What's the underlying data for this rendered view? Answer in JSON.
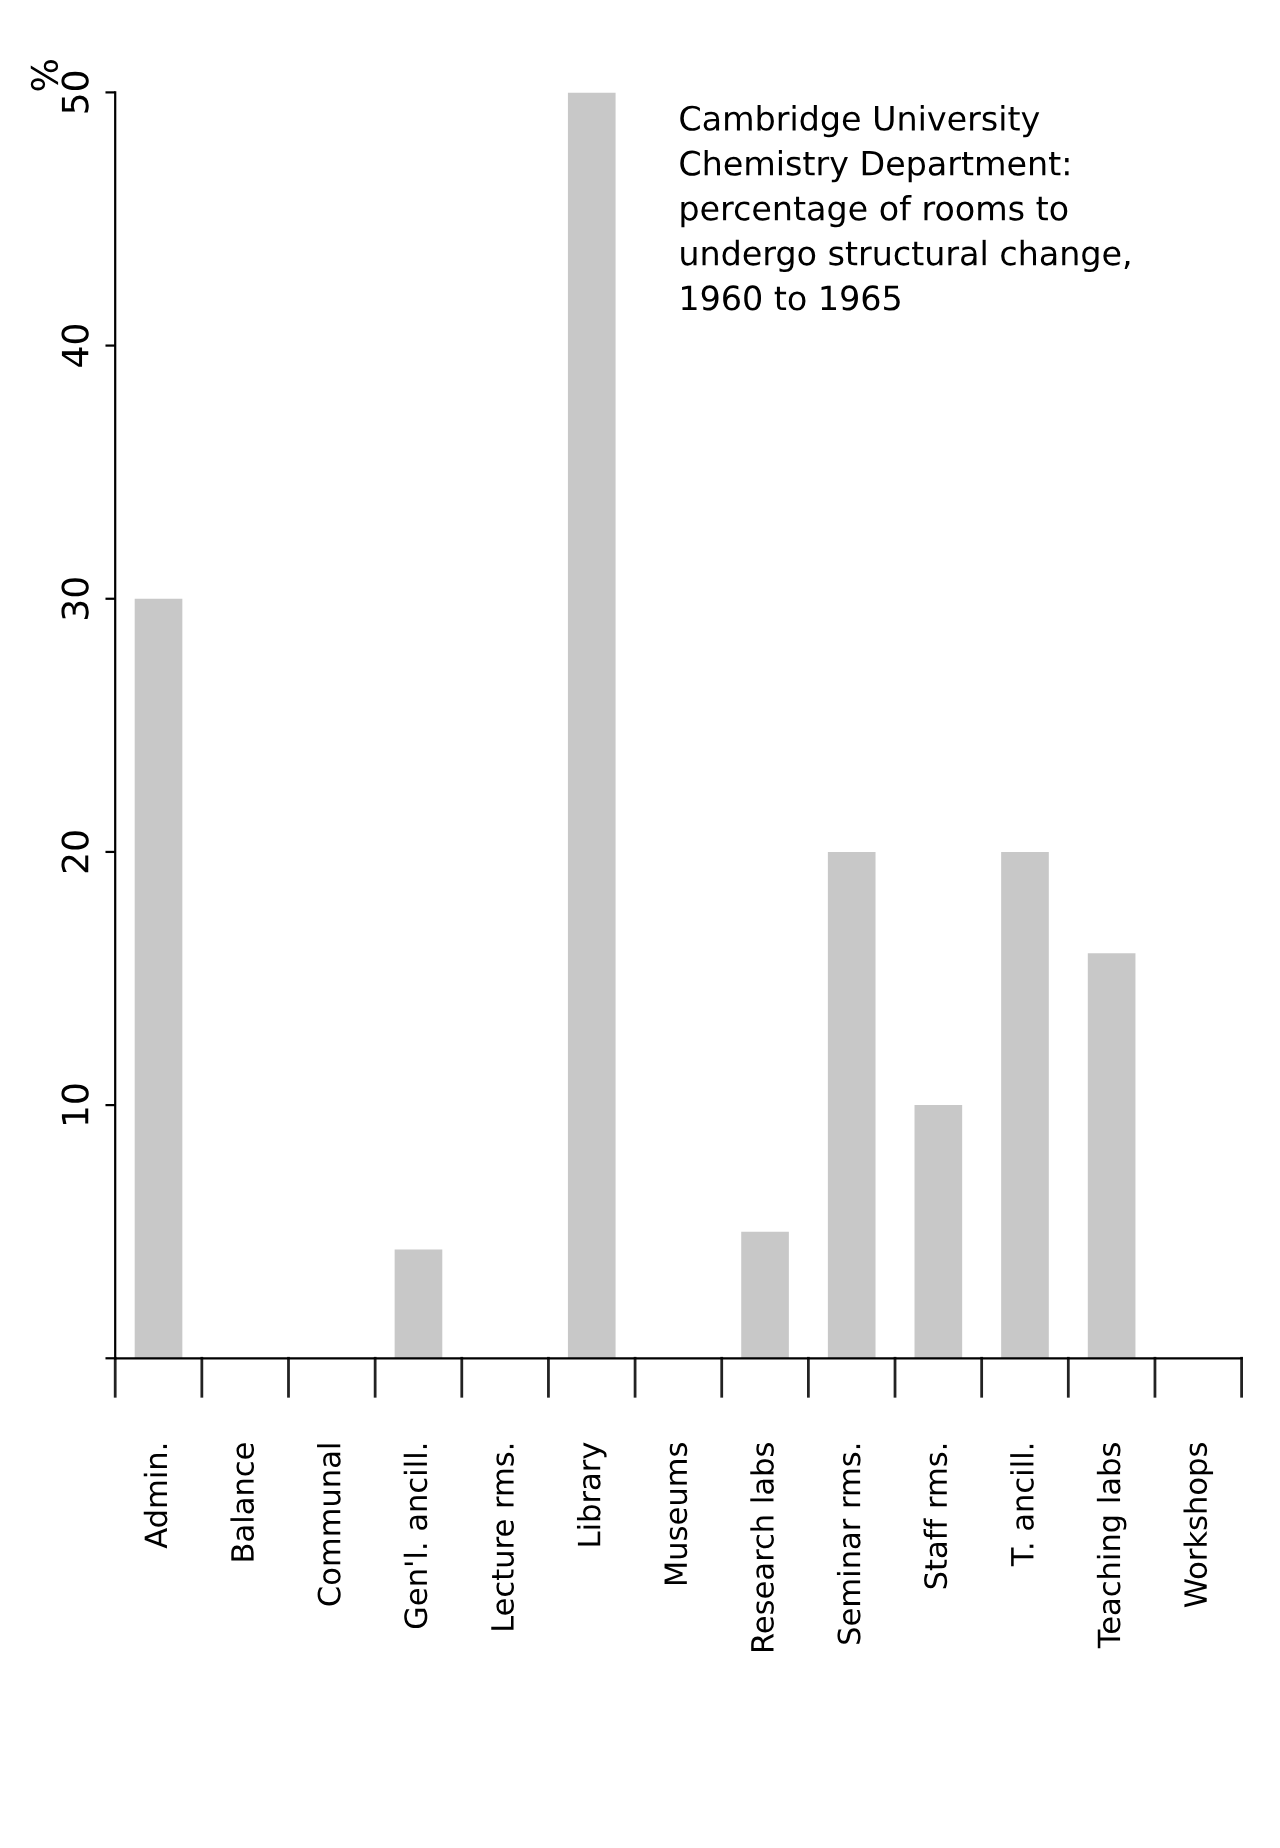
{
  "chart_data": {
    "type": "bar",
    "title": "Cambridge University\nChemistry Department:\npercentage of rooms to\nundergo structural change,\n1960 to 1965",
    "ylabel": "%",
    "categories": [
      "Admin.",
      "Balance",
      "Communal",
      "Gen'l. ancill.",
      "Lecture rms.",
      "Library",
      "Museums",
      "Research labs",
      "Seminar rms.",
      "Staff rms.",
      "T. ancill.",
      "Teaching labs",
      "Workshops"
    ],
    "values": [
      30,
      0,
      0,
      4.3,
      0,
      50,
      0,
      5,
      20,
      10,
      20,
      16,
      0
    ],
    "color": "#c8c8c8",
    "ylim": [
      0,
      50
    ],
    "yticks": [
      {
        "value": 0,
        "label": null
      },
      10,
      20,
      30,
      40,
      50
    ],
    "grid": false
  }
}
